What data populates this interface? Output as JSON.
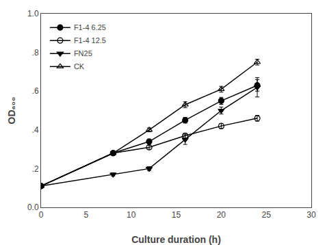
{
  "chart_data": {
    "type": "line",
    "xlabel": "Culture duration (h)",
    "ylabel": "OD₆₀₀",
    "x": [
      0,
      8,
      12,
      16,
      20,
      24
    ],
    "series": [
      {
        "name": "F1-4 6.25",
        "color": "black",
        "marker": "circle",
        "values": [
          0.11,
          0.28,
          0.34,
          0.45,
          0.55,
          0.63
        ],
        "errors": [
          0.005,
          0.008,
          0.012,
          0.015,
          0.018,
          0.03
        ]
      },
      {
        "name": "F1-4 12.5",
        "color": "black",
        "marker": "circle-open",
        "values": [
          0.11,
          0.28,
          0.31,
          0.37,
          0.42,
          0.46
        ],
        "errors": [
          0.005,
          0.008,
          0.01,
          0.012,
          0.013,
          0.015
        ]
      },
      {
        "name": "FN25",
        "color": "black",
        "marker": "triangle-down",
        "values": [
          0.11,
          0.17,
          0.2,
          0.35,
          0.5,
          0.62
        ],
        "errors": [
          0.005,
          0.008,
          0.01,
          0.025,
          0.018,
          0.05
        ]
      },
      {
        "name": "CK",
        "color": "black",
        "marker": "triangle-up-open",
        "values": [
          0.11,
          0.28,
          0.4,
          0.53,
          0.61,
          0.75
        ],
        "errors": [
          0.005,
          0.008,
          0.01,
          0.015,
          0.015,
          0.015
        ]
      }
    ],
    "xlim": [
      0,
      30
    ],
    "xticks": [
      0,
      5,
      10,
      15,
      20,
      25,
      30
    ],
    "ylim": [
      0.0,
      1.0
    ],
    "yticks": [
      {
        "value": 0.0,
        "label": "0.0"
      },
      {
        "value": 0.2,
        "label": ".2"
      },
      {
        "value": 0.4,
        "label": ".4"
      },
      {
        "value": 0.6,
        "label": ".6"
      },
      {
        "value": 0.8,
        "label": ".8"
      },
      {
        "value": 1.0,
        "label": "1.0"
      }
    ],
    "grid": false,
    "legend": "upper left"
  }
}
